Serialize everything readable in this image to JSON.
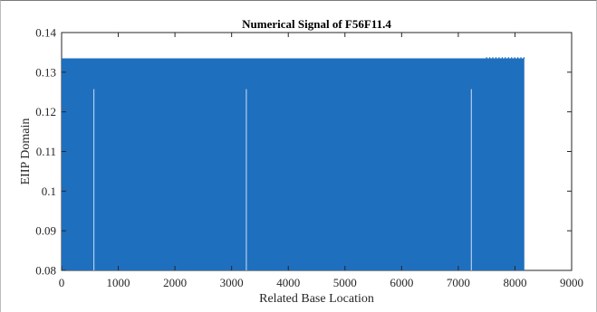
{
  "chart_data": {
    "type": "area",
    "title": "Numerical Signal of F56F11.4",
    "xlabel": "Related Base Location",
    "ylabel": "EIIP Domain",
    "xlim": [
      0,
      9000
    ],
    "ylim": [
      0.08,
      0.14
    ],
    "x_ticks": [
      0,
      1000,
      2000,
      3000,
      4000,
      5000,
      6000,
      7000,
      8000,
      9000
    ],
    "y_ticks": [
      0.08,
      0.09,
      0.1,
      0.11,
      0.12,
      0.13,
      0.14
    ],
    "x_tick_labels": [
      "0",
      "1000",
      "2000",
      "3000",
      "4000",
      "5000",
      "6000",
      "7000",
      "8000",
      "9000"
    ],
    "y_tick_labels": [
      "0.08",
      "0.09",
      "0.1",
      "0.11",
      "0.12",
      "0.13",
      "0.14"
    ],
    "series": [
      {
        "x_range": [
          0,
          8165
        ],
        "values_min": 0.08,
        "values_max": 0.1335,
        "color": "#1f6fbf"
      }
    ],
    "gaps": [
      {
        "x": 570,
        "top": 0.1257
      },
      {
        "x": 3260,
        "top": 0.1257
      },
      {
        "x": 7230,
        "top": 0.1257
      }
    ],
    "grid": false,
    "box": true
  }
}
